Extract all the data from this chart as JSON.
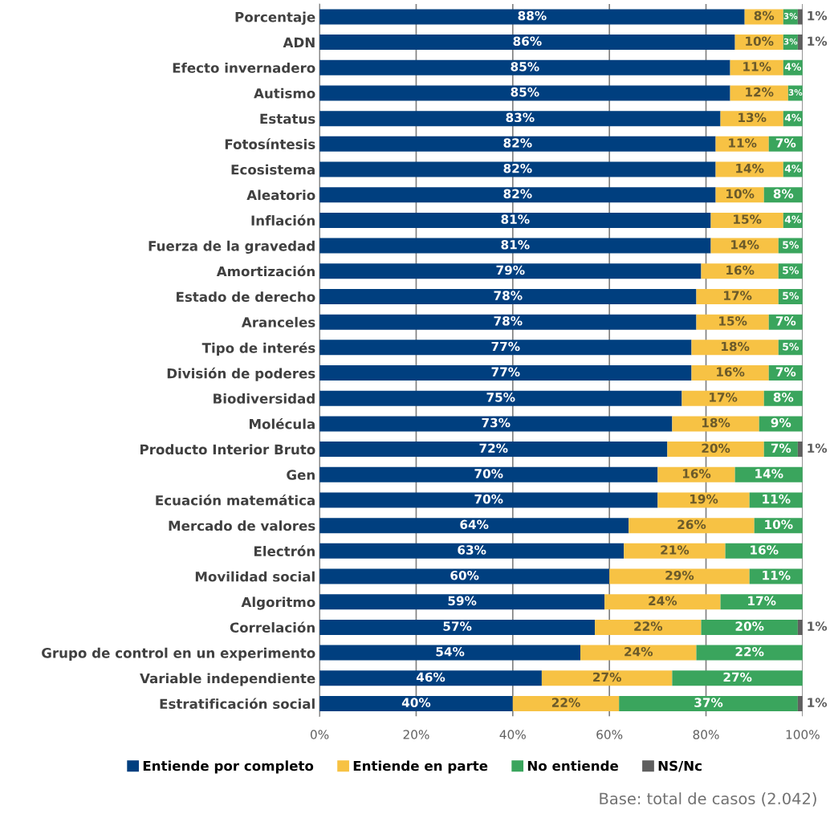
{
  "chart_data": {
    "type": "bar",
    "orientation": "horizontal",
    "stacked": true,
    "categories": [
      "Porcentaje",
      "ADN",
      "Efecto invernadero",
      "Autismo",
      "Estatus",
      "Fotosíntesis",
      "Ecosistema",
      "Aleatorio",
      "Inflación",
      "Fuerza de la gravedad",
      "Amortización",
      "Estado de derecho",
      "Aranceles",
      "Tipo de interés",
      "División de poderes",
      "Biodiversidad",
      "Molécula",
      "Producto Interior Bruto",
      "Gen",
      "Ecuación matemática",
      "Mercado de valores",
      "Electrón",
      "Movilidad social",
      "Algoritmo",
      "Correlación",
      "Grupo de control en un experimento",
      "Variable independiente",
      "Estratificación social"
    ],
    "series": [
      {
        "name": "Entiende por completo",
        "color": "#003f7f",
        "values": [
          88,
          86,
          85,
          85,
          83,
          82,
          82,
          82,
          81,
          81,
          79,
          78,
          78,
          77,
          77,
          75,
          73,
          72,
          70,
          70,
          64,
          63,
          60,
          59,
          57,
          54,
          46,
          40
        ],
        "value_labels": [
          "88%",
          "86%",
          "85%",
          "85%",
          "83%",
          "82%",
          "82%",
          "82%",
          "81%",
          "81%",
          "79%",
          "78%",
          "78%",
          "77%",
          "77%",
          "75%",
          "73%",
          "72%",
          "70%",
          "70%",
          "64%",
          "63%",
          "60%",
          "59%",
          "57%",
          "54%",
          "46%",
          "40%"
        ]
      },
      {
        "name": "Entiende en parte",
        "color": "#f7c244",
        "values": [
          8,
          10,
          11,
          12,
          13,
          11,
          14,
          10,
          15,
          14,
          16,
          17,
          15,
          18,
          16,
          17,
          18,
          20,
          16,
          19,
          26,
          21,
          29,
          24,
          22,
          24,
          27,
          22
        ],
        "value_labels": [
          "8%",
          "10%",
          "11%",
          "12%",
          "13%",
          "11%",
          "14%",
          "10%",
          "15%",
          "14%",
          "16%",
          "17%",
          "15%",
          "18%",
          "16%",
          "17%",
          "18%",
          "20%",
          "16%",
          "19%",
          "26%",
          "21%",
          "29%",
          "24%",
          "22%",
          "24%",
          "27%",
          "22%"
        ]
      },
      {
        "name": "No entiende",
        "color": "#3aa55d",
        "values": [
          3,
          3,
          4,
          3,
          4,
          7,
          4,
          8,
          4,
          5,
          5,
          5,
          7,
          5,
          7,
          8,
          9,
          7,
          14,
          11,
          10,
          16,
          11,
          17,
          20,
          22,
          27,
          37
        ],
        "value_labels": [
          "3%",
          "3%",
          "4%",
          "3%",
          "4%",
          "7%",
          "4%",
          "8%",
          "4%",
          "5%",
          "5%",
          "5%",
          "7%",
          "5%",
          "7%",
          "8%",
          "9%",
          "7%",
          "14%",
          "11%",
          "10%",
          "16%",
          "11%",
          "17%",
          "20%",
          "22%",
          "27%",
          "37%"
        ]
      },
      {
        "name": "NS/Nc",
        "color": "#5f5f5f",
        "values": [
          1,
          1,
          null,
          null,
          null,
          null,
          null,
          null,
          null,
          null,
          null,
          null,
          null,
          null,
          null,
          null,
          null,
          1,
          null,
          null,
          null,
          null,
          null,
          null,
          1,
          null,
          null,
          1
        ],
        "value_labels": [
          "1%",
          "1%",
          null,
          null,
          null,
          null,
          null,
          null,
          null,
          null,
          null,
          null,
          null,
          null,
          null,
          null,
          null,
          "1%",
          null,
          null,
          null,
          null,
          null,
          null,
          "1%",
          null,
          null,
          "1%"
        ]
      }
    ],
    "xlim": [
      0,
      100
    ],
    "xticks": [
      {
        "value": 0,
        "label": "0%"
      },
      {
        "value": 20,
        "label": "20%"
      },
      {
        "value": 40,
        "label": "40%"
      },
      {
        "value": 60,
        "label": "60%"
      },
      {
        "value": 80,
        "label": "80%"
      },
      {
        "value": 100,
        "label": "100%"
      }
    ],
    "grid": "x",
    "legend": "bottom",
    "annotations": [
      "Base: total de casos (2.042)"
    ]
  }
}
